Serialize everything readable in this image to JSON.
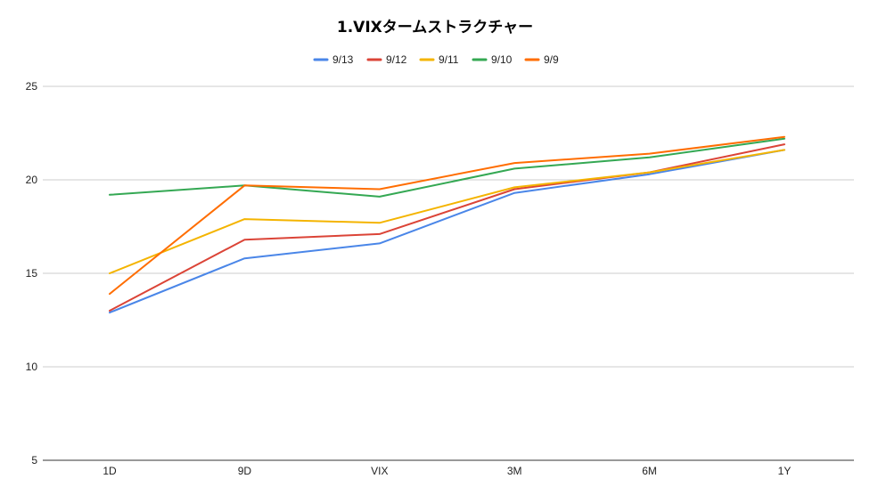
{
  "chart_data": {
    "type": "line",
    "title": "1.VIXタームストラクチャー",
    "xlabel": "",
    "ylabel": "",
    "categories": [
      "1D",
      "9D",
      "VIX",
      "3M",
      "6M",
      "1Y"
    ],
    "ylim": [
      5,
      25
    ],
    "yticks": [
      5,
      10,
      15,
      20,
      25
    ],
    "grid": true,
    "legend_position": "top",
    "series": [
      {
        "name": "9/13",
        "color": "#4a86e8",
        "values": [
          12.9,
          15.8,
          16.6,
          19.3,
          20.3,
          21.6
        ]
      },
      {
        "name": "9/12",
        "color": "#db4437",
        "values": [
          13.0,
          16.8,
          17.1,
          19.5,
          20.4,
          21.9
        ]
      },
      {
        "name": "9/11",
        "color": "#f4b400",
        "values": [
          15.0,
          17.9,
          17.7,
          19.6,
          20.4,
          21.6
        ]
      },
      {
        "name": "9/10",
        "color": "#34a853",
        "values": [
          19.2,
          19.7,
          19.1,
          20.6,
          21.2,
          22.2
        ]
      },
      {
        "name": "9/9",
        "color": "#ff6d01",
        "values": [
          13.9,
          19.7,
          19.5,
          20.9,
          21.4,
          22.3
        ]
      }
    ]
  }
}
